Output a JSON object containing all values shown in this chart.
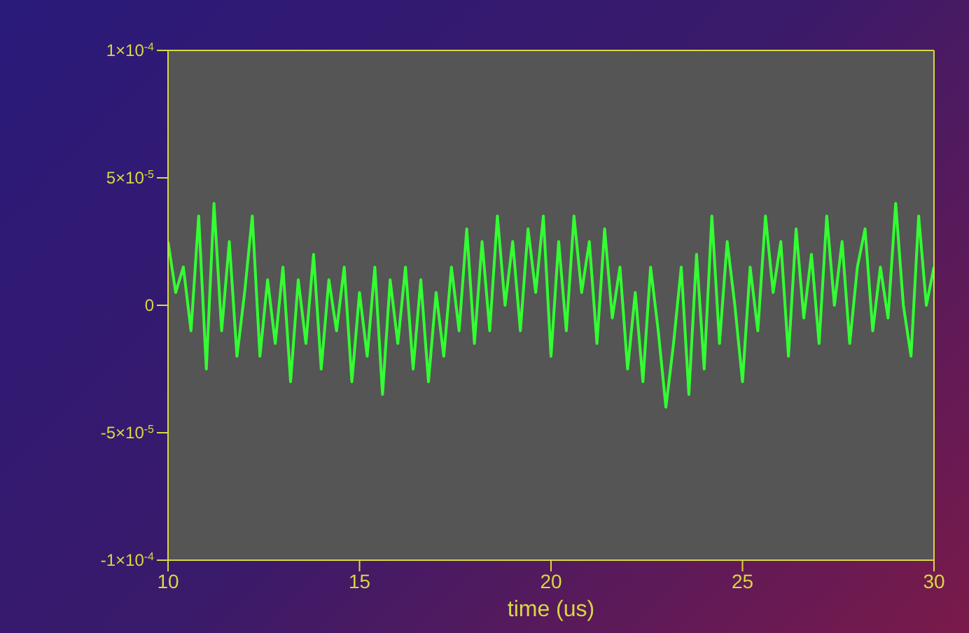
{
  "chart_data": {
    "type": "line",
    "xlabel": "time (us)",
    "xlim": [
      10,
      30
    ],
    "xticks": [
      10,
      15,
      20,
      25,
      30
    ],
    "ylim": [
      -0.0001,
      0.0001
    ],
    "yticks": [
      {
        "value": -0.0001,
        "label": "-1×10$^{-4}$"
      },
      {
        "value": -5e-05,
        "label": "-5×10$^{-5}$"
      },
      0,
      {
        "value": 5e-05,
        "label": "5×10$^{-5}$"
      },
      {
        "value": 0.0001,
        "label": "1×10$^{-4}$"
      }
    ],
    "grid": false,
    "legend": false,
    "marker": "none",
    "line_style": "solid",
    "x": [
      10.0,
      10.2,
      10.4,
      10.6,
      10.8,
      11.0,
      11.2,
      11.4,
      11.6,
      11.8,
      12.0,
      12.2,
      12.4,
      12.6,
      12.8,
      13.0,
      13.2,
      13.4,
      13.6,
      13.8,
      14.0,
      14.2,
      14.4,
      14.6,
      14.8,
      15.0,
      15.2,
      15.4,
      15.6,
      15.8,
      16.0,
      16.2,
      16.4,
      16.6,
      16.8,
      17.0,
      17.2,
      17.4,
      17.6,
      17.8,
      18.0,
      18.2,
      18.4,
      18.6,
      18.8,
      19.0,
      19.2,
      19.4,
      19.6,
      19.8,
      20.0,
      20.2,
      20.4,
      20.6,
      20.8,
      21.0,
      21.2,
      21.4,
      21.6,
      21.8,
      22.0,
      22.2,
      22.4,
      22.6,
      22.8,
      23.0,
      23.2,
      23.4,
      23.6,
      23.8,
      24.0,
      24.2,
      24.4,
      24.6,
      24.8,
      25.0,
      25.2,
      25.4,
      25.6,
      25.8,
      26.0,
      26.2,
      26.4,
      26.6,
      26.8,
      27.0,
      27.2,
      27.4,
      27.6,
      27.8,
      28.0,
      28.2,
      28.4,
      28.6,
      28.8,
      29.0,
      29.2,
      29.4,
      29.6,
      29.8,
      30.0
    ],
    "series": [
      {
        "color": "#33ff33",
        "values": [
          2.5e-05,
          5e-06,
          1.5e-05,
          -1e-05,
          3.5e-05,
          -2.5e-05,
          4e-05,
          -1e-05,
          2.5e-05,
          -2e-05,
          5e-06,
          3.5e-05,
          -2e-05,
          1e-05,
          -1.5e-05,
          1.5e-05,
          -3e-05,
          1e-05,
          -1.5e-05,
          2e-05,
          -2.5e-05,
          1e-05,
          -1e-05,
          1.5e-05,
          -3e-05,
          5e-06,
          -2e-05,
          1.5e-05,
          -3.5e-05,
          1e-05,
          -1.5e-05,
          1.5e-05,
          -2.5e-05,
          1e-05,
          -3e-05,
          5e-06,
          -2e-05,
          1.5e-05,
          -1e-05,
          3e-05,
          -1.5e-05,
          2.5e-05,
          -1e-05,
          3.5e-05,
          0,
          2.5e-05,
          -1e-05,
          3e-05,
          5e-06,
          3.5e-05,
          -2e-05,
          2.5e-05,
          -1e-05,
          3.5e-05,
          5e-06,
          2.5e-05,
          -1.5e-05,
          3e-05,
          -5e-06,
          1.5e-05,
          -2.5e-05,
          5e-06,
          -3e-05,
          1.5e-05,
          -1e-05,
          -4e-05,
          -1.5e-05,
          1.5e-05,
          -3.5e-05,
          2e-05,
          -2.5e-05,
          3.5e-05,
          -1.5e-05,
          2.5e-05,
          0,
          -3e-05,
          1.5e-05,
          -1e-05,
          3.5e-05,
          5e-06,
          2.5e-05,
          -2e-05,
          3e-05,
          -5e-06,
          2e-05,
          -1.5e-05,
          3.5e-05,
          0,
          2.5e-05,
          -1.5e-05,
          1.5e-05,
          3e-05,
          -1e-05,
          1.5e-05,
          -5e-06,
          4e-05,
          0,
          -2e-05,
          3.5e-05,
          0,
          1.5e-05
        ]
      }
    ]
  }
}
